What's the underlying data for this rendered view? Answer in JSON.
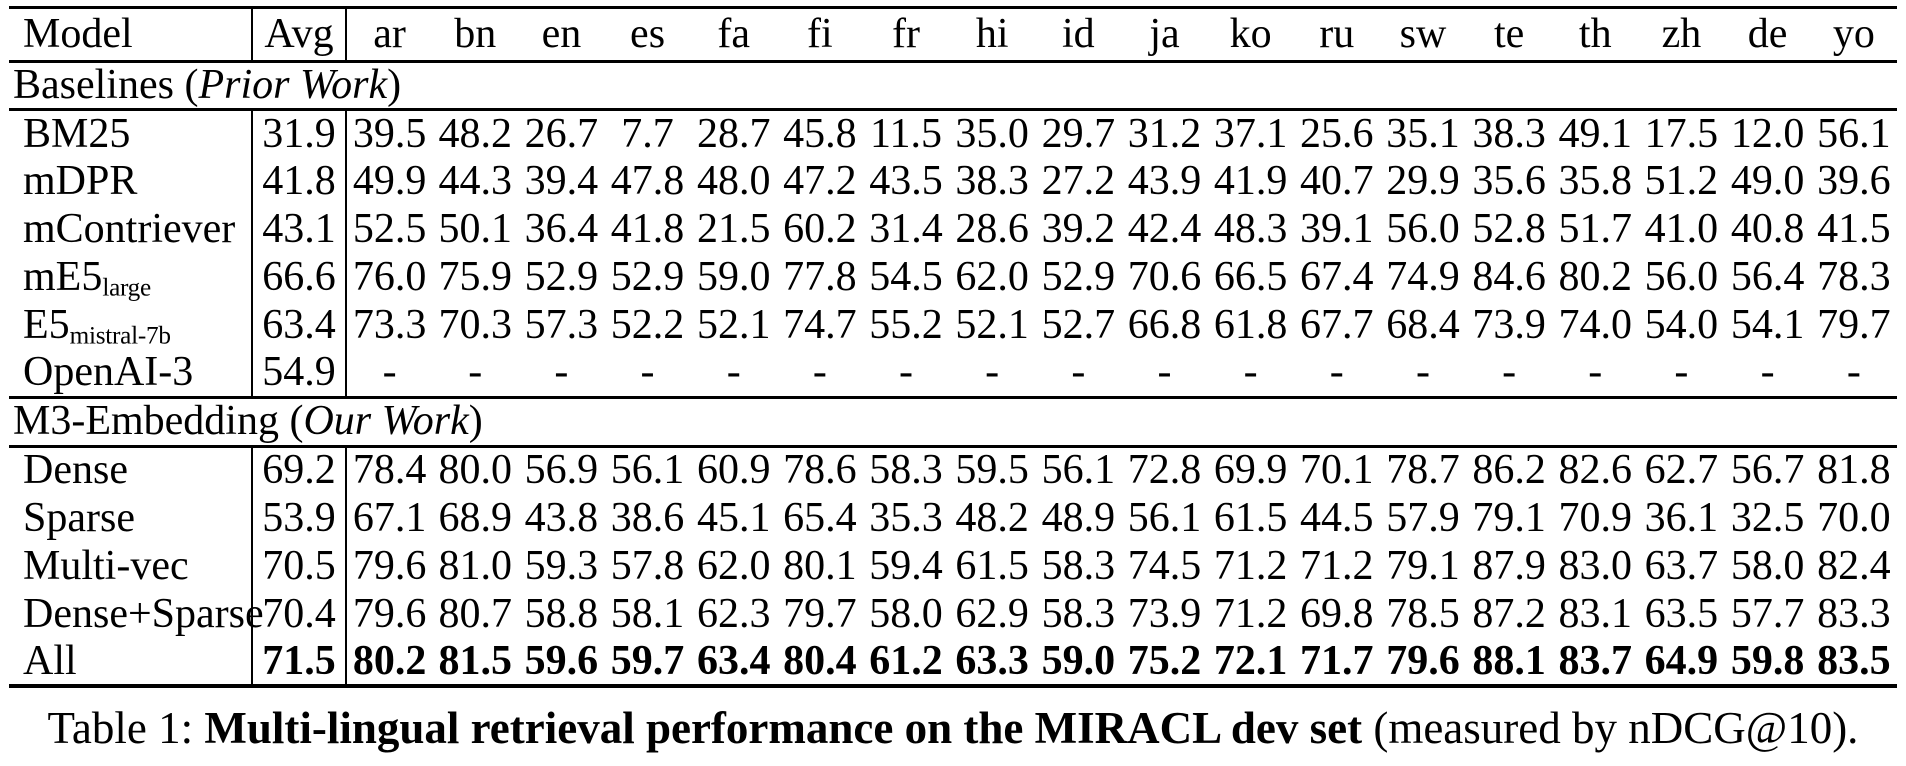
{
  "page": {
    "background_color": "#ffffff",
    "text_color": "#000000"
  },
  "table": {
    "columns": [
      "Model",
      "Avg",
      "ar",
      "bn",
      "en",
      "es",
      "fa",
      "fi",
      "fr",
      "hi",
      "id",
      "ja",
      "ko",
      "ru",
      "sw",
      "te",
      "th",
      "zh",
      "de",
      "yo"
    ],
    "sections": [
      {
        "title_prefix": "Baselines (",
        "title_italic": "Prior Work",
        "title_suffix": ")",
        "rows": [
          {
            "model": "BM25",
            "model_sub": "",
            "avg": "31.9",
            "bold": false,
            "values": [
              "39.5",
              "48.2",
              "26.7",
              "7.7",
              "28.7",
              "45.8",
              "11.5",
              "35.0",
              "29.7",
              "31.2",
              "37.1",
              "25.6",
              "35.1",
              "38.3",
              "49.1",
              "17.5",
              "12.0",
              "56.1"
            ]
          },
          {
            "model": "mDPR",
            "model_sub": "",
            "avg": "41.8",
            "bold": false,
            "values": [
              "49.9",
              "44.3",
              "39.4",
              "47.8",
              "48.0",
              "47.2",
              "43.5",
              "38.3",
              "27.2",
              "43.9",
              "41.9",
              "40.7",
              "29.9",
              "35.6",
              "35.8",
              "51.2",
              "49.0",
              "39.6"
            ]
          },
          {
            "model": "mContriever",
            "model_sub": "",
            "avg": "43.1",
            "bold": false,
            "values": [
              "52.5",
              "50.1",
              "36.4",
              "41.8",
              "21.5",
              "60.2",
              "31.4",
              "28.6",
              "39.2",
              "42.4",
              "48.3",
              "39.1",
              "56.0",
              "52.8",
              "51.7",
              "41.0",
              "40.8",
              "41.5"
            ]
          },
          {
            "model": "mE5",
            "model_sub": "large",
            "avg": "66.6",
            "bold": false,
            "values": [
              "76.0",
              "75.9",
              "52.9",
              "52.9",
              "59.0",
              "77.8",
              "54.5",
              "62.0",
              "52.9",
              "70.6",
              "66.5",
              "67.4",
              "74.9",
              "84.6",
              "80.2",
              "56.0",
              "56.4",
              "78.3"
            ]
          },
          {
            "model": "E5",
            "model_sub": "mistral-7b",
            "avg": "63.4",
            "bold": false,
            "values": [
              "73.3",
              "70.3",
              "57.3",
              "52.2",
              "52.1",
              "74.7",
              "55.2",
              "52.1",
              "52.7",
              "66.8",
              "61.8",
              "67.7",
              "68.4",
              "73.9",
              "74.0",
              "54.0",
              "54.1",
              "79.7"
            ]
          },
          {
            "model": "OpenAI-3",
            "model_sub": "",
            "avg": "54.9",
            "bold": false,
            "values": [
              "-",
              "-",
              "-",
              "-",
              "-",
              "-",
              "-",
              "-",
              "-",
              "-",
              "-",
              "-",
              "-",
              "-",
              "-",
              "-",
              "-",
              "-"
            ]
          }
        ]
      },
      {
        "title_prefix": "M3-Embedding (",
        "title_italic": "Our Work",
        "title_suffix": ")",
        "rows": [
          {
            "model": "Dense",
            "model_sub": "",
            "avg": "69.2",
            "bold": false,
            "values": [
              "78.4",
              "80.0",
              "56.9",
              "56.1",
              "60.9",
              "78.6",
              "58.3",
              "59.5",
              "56.1",
              "72.8",
              "69.9",
              "70.1",
              "78.7",
              "86.2",
              "82.6",
              "62.7",
              "56.7",
              "81.8"
            ]
          },
          {
            "model": "Sparse",
            "model_sub": "",
            "avg": "53.9",
            "bold": false,
            "values": [
              "67.1",
              "68.9",
              "43.8",
              "38.6",
              "45.1",
              "65.4",
              "35.3",
              "48.2",
              "48.9",
              "56.1",
              "61.5",
              "44.5",
              "57.9",
              "79.1",
              "70.9",
              "36.1",
              "32.5",
              "70.0"
            ]
          },
          {
            "model": "Multi-vec",
            "model_sub": "",
            "avg": "70.5",
            "bold": false,
            "values": [
              "79.6",
              "81.0",
              "59.3",
              "57.8",
              "62.0",
              "80.1",
              "59.4",
              "61.5",
              "58.3",
              "74.5",
              "71.2",
              "71.2",
              "79.1",
              "87.9",
              "83.0",
              "63.7",
              "58.0",
              "82.4"
            ]
          },
          {
            "model": "Dense+Sparse",
            "model_sub": "",
            "avg": "70.4",
            "bold": false,
            "values": [
              "79.6",
              "80.7",
              "58.8",
              "58.1",
              "62.3",
              "79.7",
              "58.0",
              "62.9",
              "58.3",
              "73.9",
              "71.2",
              "69.8",
              "78.5",
              "87.2",
              "83.1",
              "63.5",
              "57.7",
              "83.3"
            ]
          },
          {
            "model": "All",
            "model_sub": "",
            "avg": "71.5",
            "bold": true,
            "values": [
              "80.2",
              "81.5",
              "59.6",
              "59.7",
              "63.4",
              "80.4",
              "61.2",
              "63.3",
              "59.0",
              "75.2",
              "72.1",
              "71.7",
              "79.6",
              "88.1",
              "83.7",
              "64.9",
              "59.8",
              "83.5"
            ]
          }
        ]
      }
    ]
  },
  "caption": {
    "prefix": "Table 1: ",
    "bold_text": "Multi-lingual retrieval performance on the MIRACL dev set",
    "suffix": " (measured by nDCG@10)."
  }
}
